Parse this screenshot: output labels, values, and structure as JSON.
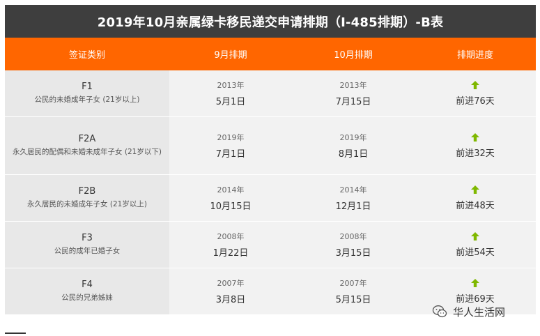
{
  "title": "2019年10月亲属绿卡移民递交申请排期（I-485排期）-B表",
  "headers": {
    "category": "签证类别",
    "sep": "9月排期",
    "oct": "10月排期",
    "progress": "排期进度"
  },
  "rows": [
    {
      "code": "F1",
      "desc": "公民的未婚成年子女 (21岁以上)",
      "sep_year": "2013年",
      "sep_date": "5月1日",
      "oct_year": "2013年",
      "oct_date": "7月15日",
      "progress": "前进76天"
    },
    {
      "code": "F2A",
      "desc": "永久居民的配偶和未婚未成年子女 (21岁以下)",
      "sep_year": "2019年",
      "sep_date": "7月1日",
      "oct_year": "2019年",
      "oct_date": "8月1日",
      "progress": "前进32天"
    },
    {
      "code": "F2B",
      "desc": "永久居民的未婚成年子女 (21岁以上)",
      "sep_year": "2014年",
      "sep_date": "10月15日",
      "oct_year": "2014年",
      "oct_date": "12月1日",
      "progress": "前进48天"
    },
    {
      "code": "F3",
      "desc": "公民的成年已婚子女",
      "sep_year": "2008年",
      "sep_date": "1月22日",
      "oct_year": "2008年",
      "oct_date": "3月15日",
      "progress": "前进54天"
    },
    {
      "code": "F4",
      "desc": "公民的兄弟姊妹",
      "sep_year": "2007年",
      "sep_date": "3月8日",
      "oct_year": "2007年",
      "oct_date": "5月15日",
      "progress": "前进69天"
    }
  ],
  "watermark": "华人生活网",
  "colors": {
    "title_bg": "#3e3e3e",
    "header_bg": "#ff6600",
    "arrow": "#7fb800"
  },
  "icons": {
    "arrow": "arrow-up-icon",
    "wechat": "wechat-icon"
  }
}
